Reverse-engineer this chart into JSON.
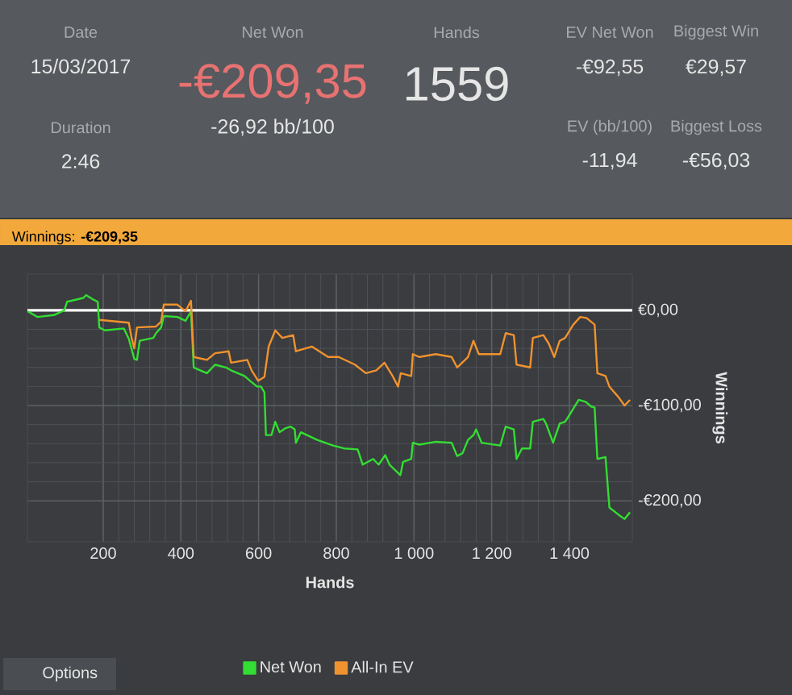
{
  "chart_data": [
    {
      "type": "other",
      "annotations": [
        "Date",
        "15/03/2017",
        "Duration",
        "2:46",
        "Net Won",
        "-€209,35",
        "-26,92 bb/100",
        "Hands",
        "1559",
        "EV Net Won",
        "-€92,55",
        "Biggest Win",
        "€29,57",
        "EV (bb/100)",
        "-11,94",
        "Biggest Loss",
        "-€56,03"
      ]
    },
    {
      "type": "line",
      "title": "Winnings: **-€209,35**",
      "xlabel": "Hands",
      "ylabel": "Winnings",
      "xlim": [
        5,
        1562
      ],
      "ylim": [
        -243,
        38
      ],
      "xticks": [
        200,
        400,
        600,
        800,
        {
          "value": 1000,
          "label": "1 000"
        },
        {
          "value": 1200,
          "label": "1 200"
        },
        {
          "value": 1400,
          "label": "1 400"
        }
      ],
      "yticks": [
        {
          "value": 0,
          "label": "€0,00"
        },
        {
          "value": -100,
          "label": "-€100,00"
        },
        {
          "value": -200,
          "label": "-€200,00"
        }
      ],
      "grid": true,
      "legend": "bottom",
      "marker": "none",
      "line_style": "solid",
      "ref_lines": [
        {
          "axis": "y",
          "value": 0,
          "color": "#ffffff"
        }
      ],
      "annotations": [
        "Options"
      ],
      "series": [
        {
          "name": "Net Won",
          "color": "#33dd33",
          "x": [
            6,
            31,
            73,
            100,
            107,
            149,
            156,
            176,
            186,
            190,
            204,
            253,
            266,
            280,
            287,
            294,
            329,
            336,
            349,
            356,
            391,
            412,
            426,
            433,
            467,
            488,
            516,
            529,
            564,
            578,
            596,
            606,
            615,
            619,
            633,
            643,
            654,
            668,
            682,
            693,
            696,
            709,
            751,
            792,
            820,
            855,
            868,
            895,
            909,
            926,
            937,
            965,
            972,
            993,
            997,
            1014,
            1056,
            1097,
            1111,
            1125,
            1139,
            1153,
            1160,
            1174,
            1222,
            1236,
            1257,
            1264,
            1278,
            1299,
            1306,
            1333,
            1340,
            1358,
            1375,
            1389,
            1403,
            1424,
            1442,
            1456,
            1465,
            1472,
            1493,
            1503,
            1528,
            1542,
            1556
          ],
          "values": [
            -1,
            -7,
            -5,
            0,
            9,
            13,
            16,
            11,
            9,
            -18,
            -21,
            -19,
            -30,
            -51,
            -52,
            -32,
            -29,
            -24,
            -18,
            -6,
            -7,
            -11,
            -1,
            -60,
            -66,
            -57,
            -60,
            -63,
            -69,
            -74,
            -80,
            -80,
            -86,
            -131,
            -131,
            -117,
            -128,
            -124,
            -122,
            -125,
            -139,
            -128,
            -136,
            -142,
            -145,
            -146,
            -162,
            -156,
            -162,
            -152,
            -162,
            -173,
            -159,
            -156,
            -139,
            -141,
            -138,
            -139,
            -153,
            -150,
            -136,
            -131,
            -125,
            -139,
            -142,
            -122,
            -125,
            -156,
            -145,
            -145,
            -117,
            -114,
            -119,
            -139,
            -119,
            -117,
            -108,
            -94,
            -96,
            -101,
            -102,
            -156,
            -154,
            -207,
            -215,
            -219,
            -212
          ]
        },
        {
          "name": "All-In EV",
          "color": "#f0922e",
          "x": [
            190,
            266,
            273,
            280,
            287,
            336,
            349,
            356,
            391,
            412,
            426,
            433,
            467,
            488,
            523,
            529,
            571,
            582,
            599,
            615,
            626,
            643,
            661,
            689,
            696,
            737,
            779,
            806,
            848,
            876,
            903,
            924,
            945,
            959,
            966,
            993,
            997,
            1014,
            1056,
            1097,
            1111,
            1139,
            1153,
            1167,
            1222,
            1236,
            1257,
            1264,
            1299,
            1306,
            1333,
            1347,
            1361,
            1375,
            1389,
            1410,
            1428,
            1444,
            1465,
            1472,
            1493,
            1503,
            1528,
            1542,
            1556
          ],
          "values": [
            -10,
            -13,
            -29,
            -40,
            -18,
            -17,
            -12,
            6,
            6,
            -1,
            10,
            -49,
            -52,
            -45,
            -43,
            -55,
            -52,
            -63,
            -74,
            -70,
            -38,
            -21,
            -29,
            -26,
            -43,
            -38,
            -49,
            -49,
            -57,
            -66,
            -63,
            -55,
            -69,
            -80,
            -66,
            -69,
            -46,
            -49,
            -46,
            -49,
            -60,
            -49,
            -32,
            -46,
            -46,
            -24,
            -26,
            -57,
            -60,
            -29,
            -26,
            -35,
            -49,
            -32,
            -29,
            -15,
            -7,
            -8,
            -15,
            -66,
            -69,
            -80,
            -92,
            -100,
            -94
          ]
        }
      ]
    }
  ]
}
